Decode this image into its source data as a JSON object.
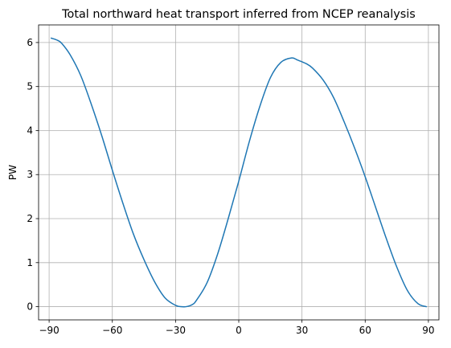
{
  "chart_data": {
    "type": "line",
    "title": "Total northward heat transport inferred from NCEP reanalysis",
    "xlabel": "",
    "ylabel": "PW",
    "xlim": [
      -95,
      95
    ],
    "ylim": [
      -0.3,
      6.4
    ],
    "xticks": [
      -90,
      -60,
      -30,
      0,
      30,
      60,
      90
    ],
    "xtick_labels": [
      "−90",
      "−60",
      "−30",
      "0",
      "30",
      "60",
      "90"
    ],
    "yticks": [
      0,
      1,
      2,
      3,
      4,
      5,
      6
    ],
    "ytick_labels": [
      "0",
      "1",
      "2",
      "3",
      "4",
      "5",
      "6"
    ],
    "grid": true,
    "series": [
      {
        "color": "#1f77b4",
        "x": [
          -89,
          -86,
          -84,
          -80,
          -75,
          -70,
          -65,
          -60,
          -55,
          -50,
          -45,
          -40,
          -35,
          -30,
          -27,
          -25,
          -22,
          -20,
          -15,
          -10,
          -5,
          0,
          5,
          10,
          15,
          20,
          25,
          28,
          32,
          35,
          40,
          45,
          50,
          55,
          60,
          65,
          70,
          75,
          80,
          85,
          89
        ],
        "y": [
          6.1,
          6.05,
          5.98,
          5.72,
          5.25,
          4.6,
          3.88,
          3.1,
          2.35,
          1.65,
          1.07,
          0.57,
          0.2,
          0.03,
          0.0,
          0.0,
          0.05,
          0.15,
          0.55,
          1.2,
          2.0,
          2.85,
          3.75,
          4.55,
          5.2,
          5.55,
          5.65,
          5.6,
          5.52,
          5.42,
          5.15,
          4.75,
          4.2,
          3.6,
          2.95,
          2.25,
          1.55,
          0.9,
          0.37,
          0.07,
          0.0
        ]
      }
    ]
  }
}
